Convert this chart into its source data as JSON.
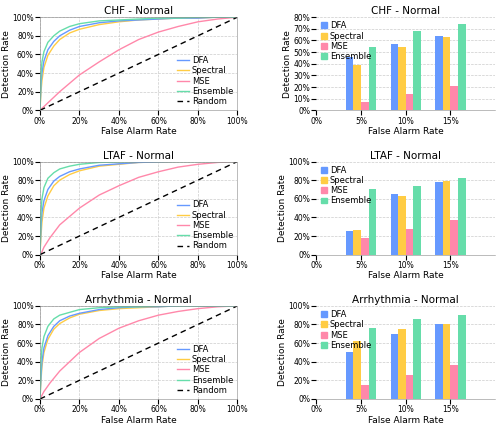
{
  "titles_roc": [
    "CHF - Normal",
    "LTAF - Normal",
    "Arrhythmia - Normal"
  ],
  "titles_bar": [
    "CHF - Normal",
    "LTAF - Normal",
    "Arrhythmia - Normal"
  ],
  "colors": {
    "DFA": "#6699FF",
    "Spectral": "#FFCC44",
    "MSE": "#FF88AA",
    "Ensemble": "#66DDAA"
  },
  "random_color": "#000000",
  "bar_data": {
    "CHF": {
      "DFA": [
        0.46,
        0.57,
        0.64
      ],
      "Spectral": [
        0.39,
        0.54,
        0.63
      ],
      "MSE": [
        0.07,
        0.14,
        0.21
      ],
      "Ensemble": [
        0.54,
        0.68,
        0.74
      ]
    },
    "LTAF": {
      "DFA": [
        0.25,
        0.65,
        0.78
      ],
      "Spectral": [
        0.26,
        0.63,
        0.79
      ],
      "MSE": [
        0.18,
        0.28,
        0.37
      ],
      "Ensemble": [
        0.7,
        0.74,
        0.82
      ]
    },
    "Arrhythmia": {
      "DFA": [
        0.5,
        0.7,
        0.8
      ],
      "Spectral": [
        0.62,
        0.75,
        0.81
      ],
      "MSE": [
        0.15,
        0.26,
        0.36
      ],
      "Ensemble": [
        0.76,
        0.86,
        0.9
      ]
    }
  },
  "roc_data": {
    "CHF": {
      "DFA": {
        "x": [
          0,
          0.005,
          0.01,
          0.02,
          0.04,
          0.07,
          0.1,
          0.15,
          0.2,
          0.3,
          0.4,
          0.5,
          0.6,
          0.7,
          0.8,
          0.9,
          1.0
        ],
        "y": [
          0,
          0.28,
          0.4,
          0.53,
          0.65,
          0.74,
          0.8,
          0.86,
          0.9,
          0.94,
          0.96,
          0.97,
          0.98,
          0.99,
          0.99,
          1.0,
          1.0
        ]
      },
      "Spectral": {
        "x": [
          0,
          0.005,
          0.01,
          0.02,
          0.04,
          0.07,
          0.1,
          0.15,
          0.2,
          0.3,
          0.4,
          0.5,
          0.6,
          0.7,
          0.8,
          0.9,
          1.0
        ],
        "y": [
          0,
          0.2,
          0.32,
          0.46,
          0.59,
          0.69,
          0.76,
          0.83,
          0.87,
          0.92,
          0.95,
          0.97,
          0.98,
          0.99,
          0.99,
          1.0,
          1.0
        ]
      },
      "MSE": {
        "x": [
          0,
          0.02,
          0.05,
          0.1,
          0.15,
          0.2,
          0.3,
          0.4,
          0.5,
          0.6,
          0.7,
          0.8,
          0.9,
          1.0
        ],
        "y": [
          0,
          0.04,
          0.1,
          0.2,
          0.29,
          0.38,
          0.52,
          0.65,
          0.76,
          0.84,
          0.9,
          0.95,
          0.98,
          1.0
        ]
      },
      "Ensemble": {
        "x": [
          0,
          0.005,
          0.01,
          0.02,
          0.04,
          0.07,
          0.1,
          0.15,
          0.2,
          0.3,
          0.4,
          0.5,
          0.6,
          0.7,
          0.8,
          0.9,
          1.0
        ],
        "y": [
          0,
          0.38,
          0.52,
          0.63,
          0.73,
          0.8,
          0.85,
          0.9,
          0.93,
          0.96,
          0.97,
          0.98,
          0.99,
          0.99,
          1.0,
          1.0,
          1.0
        ]
      }
    },
    "LTAF": {
      "DFA": {
        "x": [
          0,
          0.005,
          0.01,
          0.02,
          0.04,
          0.07,
          0.1,
          0.15,
          0.2,
          0.3,
          0.5,
          0.7,
          0.9,
          1.0
        ],
        "y": [
          0,
          0.3,
          0.45,
          0.58,
          0.7,
          0.79,
          0.84,
          0.89,
          0.92,
          0.96,
          0.99,
          1.0,
          1.0,
          1.0
        ]
      },
      "Spectral": {
        "x": [
          0,
          0.005,
          0.01,
          0.02,
          0.04,
          0.07,
          0.1,
          0.15,
          0.2,
          0.3,
          0.5,
          0.7,
          0.9,
          1.0
        ],
        "y": [
          0,
          0.2,
          0.35,
          0.5,
          0.63,
          0.74,
          0.8,
          0.86,
          0.9,
          0.95,
          0.99,
          1.0,
          1.0,
          1.0
        ]
      },
      "MSE": {
        "x": [
          0,
          0.01,
          0.02,
          0.05,
          0.1,
          0.2,
          0.3,
          0.4,
          0.5,
          0.6,
          0.7,
          0.8,
          0.9,
          1.0
        ],
        "y": [
          0,
          0.03,
          0.08,
          0.18,
          0.32,
          0.5,
          0.64,
          0.74,
          0.83,
          0.89,
          0.94,
          0.97,
          0.99,
          1.0
        ]
      },
      "Ensemble": {
        "x": [
          0,
          0.005,
          0.01,
          0.02,
          0.04,
          0.07,
          0.1,
          0.15,
          0.2,
          0.3,
          0.5,
          0.7,
          0.9,
          1.0
        ],
        "y": [
          0,
          0.45,
          0.6,
          0.72,
          0.82,
          0.88,
          0.92,
          0.95,
          0.97,
          0.99,
          1.0,
          1.0,
          1.0,
          1.0
        ]
      }
    },
    "Arrhythmia": {
      "DFA": {
        "x": [
          0,
          0.005,
          0.01,
          0.02,
          0.04,
          0.07,
          0.1,
          0.15,
          0.2,
          0.3,
          0.4,
          0.5,
          0.6,
          0.7,
          0.8,
          0.9,
          1.0
        ],
        "y": [
          0,
          0.25,
          0.4,
          0.55,
          0.68,
          0.78,
          0.84,
          0.89,
          0.92,
          0.96,
          0.98,
          0.99,
          0.99,
          1.0,
          1.0,
          1.0,
          1.0
        ]
      },
      "Spectral": {
        "x": [
          0,
          0.005,
          0.01,
          0.02,
          0.04,
          0.07,
          0.1,
          0.15,
          0.2,
          0.3,
          0.4,
          0.5,
          0.6,
          0.7,
          0.8,
          0.9,
          1.0
        ],
        "y": [
          0,
          0.2,
          0.35,
          0.5,
          0.64,
          0.75,
          0.81,
          0.87,
          0.91,
          0.95,
          0.97,
          0.98,
          0.99,
          1.0,
          1.0,
          1.0,
          1.0
        ]
      },
      "MSE": {
        "x": [
          0,
          0.01,
          0.02,
          0.05,
          0.1,
          0.2,
          0.3,
          0.4,
          0.5,
          0.6,
          0.7,
          0.8,
          0.9,
          1.0
        ],
        "y": [
          0,
          0.04,
          0.08,
          0.17,
          0.3,
          0.5,
          0.65,
          0.76,
          0.84,
          0.9,
          0.94,
          0.97,
          0.99,
          1.0
        ]
      },
      "Ensemble": {
        "x": [
          0,
          0.005,
          0.01,
          0.02,
          0.04,
          0.07,
          0.1,
          0.15,
          0.2,
          0.3,
          0.4,
          0.5,
          0.6,
          0.7,
          0.8,
          0.9,
          1.0
        ],
        "y": [
          0,
          0.4,
          0.55,
          0.67,
          0.78,
          0.86,
          0.9,
          0.93,
          0.96,
          0.98,
          0.99,
          0.99,
          1.0,
          1.0,
          1.0,
          1.0,
          1.0
        ]
      }
    }
  },
  "bar_ylim_CHF": 0.8,
  "bar_ylim_LTAF": 1.0,
  "bar_ylim_Arrhythmia": 1.0,
  "background_color": "#FFFFFF",
  "grid_color": "#CCCCCC",
  "title_fontsize": 7.5,
  "axis_fontsize": 6.5,
  "tick_fontsize": 5.5,
  "legend_fontsize": 6.0
}
